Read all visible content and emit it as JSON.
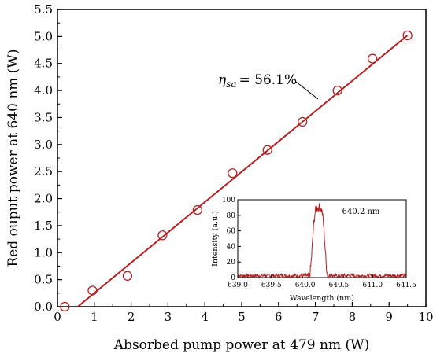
{
  "chart_data": [
    {
      "type": "scatter",
      "xlabel": "Absorbed pump power at 479 nm (W)",
      "ylabel": "Red ouput power at 640 nm (W)",
      "xlim": [
        0,
        10
      ],
      "ylim": [
        0,
        5.5
      ],
      "xticks": [
        "0",
        "1",
        "2",
        "3",
        "4",
        "5",
        "6",
        "7",
        "8",
        "9",
        "10"
      ],
      "yticks": [
        "0.0",
        "0.5",
        "1.0",
        "1.5",
        "2.0",
        "2.5",
        "3.0",
        "3.5",
        "4.0",
        "4.5",
        "5.0",
        "5.5"
      ],
      "series": [
        {
          "marker": "open-circle",
          "color": "#b22222",
          "x": [
            0.2,
            0.95,
            1.9,
            2.85,
            3.8,
            4.75,
            5.7,
            6.65,
            7.6,
            8.55,
            9.5
          ],
          "y": [
            0.0,
            0.3,
            0.57,
            1.32,
            1.79,
            2.47,
            2.9,
            3.42,
            4.0,
            4.59,
            5.02
          ]
        }
      ],
      "fit_line": {
        "color": "#b22222",
        "x": [
          0.55,
          9.5
        ],
        "y": [
          0.0,
          5.02
        ],
        "label_symbol": "η",
        "label_subscript": "sa",
        "label_value": "= 56.1%"
      }
    },
    {
      "type": "line",
      "inset": true,
      "xlabel": "Wavelength (nm)",
      "ylabel": "Intensity (a.u.)",
      "xlim": [
        639.0,
        641.5
      ],
      "ylim": [
        0,
        100
      ],
      "xticks": [
        "639.0",
        "639.5",
        "640.0",
        "640.5",
        "641.0",
        "641.5"
      ],
      "yticks": [
        "0",
        "20",
        "40",
        "60",
        "80",
        "100"
      ],
      "annotation": "640.2 nm",
      "color": "#b22222",
      "peak_center": 640.2
    }
  ]
}
